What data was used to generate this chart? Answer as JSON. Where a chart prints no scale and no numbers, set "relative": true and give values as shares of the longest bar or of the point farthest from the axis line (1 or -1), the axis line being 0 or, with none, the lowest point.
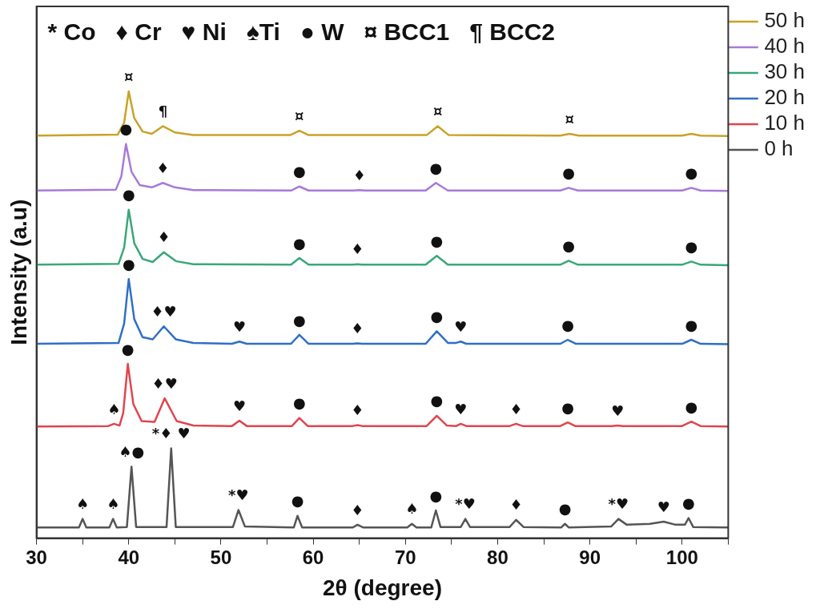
{
  "chart_data": {
    "type": "line",
    "xlabel": "2θ (degree)",
    "ylabel": "Intensity (a.u)",
    "relative": true,
    "tick_labels": "x",
    "legend": "top right",
    "grid": false,
    "marker": "none",
    "line_style": "solid",
    "xlim": [
      30,
      105
    ],
    "xticks": [
      30,
      {
        "value": 35,
        "label": null
      },
      40,
      {
        "value": 45,
        "label": null
      },
      50,
      {
        "value": 55,
        "label": null
      },
      60,
      {
        "value": 65,
        "label": null
      },
      70,
      {
        "value": 75,
        "label": null
      },
      80,
      {
        "value": 85,
        "label": null
      },
      90,
      {
        "value": 95,
        "label": null
      },
      100,
      {
        "value": 105,
        "label": null
      }
    ],
    "series": [
      {
        "name": "50 h",
        "color": "#c9a227",
        "x": [
          30,
          38.8,
          39.5,
          40,
          40.6,
          41.5,
          42.5,
          43.7,
          45,
          47,
          57.5,
          58.5,
          59.5,
          72.3,
          73.5,
          74.7,
          86.8,
          87.8,
          88.8,
          100,
          101,
          102,
          105
        ],
        "values": [
          0.901,
          0.903,
          0.93,
          1.0,
          0.94,
          0.91,
          0.905,
          0.922,
          0.908,
          0.902,
          0.902,
          0.912,
          0.902,
          0.902,
          0.922,
          0.902,
          0.901,
          0.905,
          0.901,
          0.901,
          0.905,
          0.901,
          0.9
        ]
      },
      {
        "name": "40 h",
        "color": "#a87ad8",
        "x": [
          30,
          38.6,
          39.2,
          39.7,
          40.3,
          41.2,
          42.5,
          43.7,
          45,
          47,
          57.6,
          58.5,
          59.5,
          64.4,
          65,
          65.6,
          72.2,
          73.3,
          74.6,
          86.8,
          87.7,
          88.7,
          100,
          101,
          102,
          105
        ],
        "values": [
          0.778,
          0.78,
          0.81,
          0.882,
          0.82,
          0.79,
          0.785,
          0.795,
          0.785,
          0.779,
          0.778,
          0.787,
          0.778,
          0.778,
          0.779,
          0.778,
          0.778,
          0.795,
          0.778,
          0.778,
          0.784,
          0.778,
          0.778,
          0.784,
          0.778,
          0.777
        ]
      },
      {
        "name": "30 h",
        "color": "#3aa77a",
        "x": [
          30,
          38.9,
          39.5,
          40,
          40.6,
          41.5,
          42.6,
          43.8,
          45.1,
          47,
          57.6,
          58.5,
          59.5,
          64.3,
          64.8,
          65.3,
          72.2,
          73.4,
          74.6,
          86.8,
          87.7,
          88.7,
          100,
          101,
          102,
          105
        ],
        "values": [
          0.612,
          0.614,
          0.65,
          0.735,
          0.66,
          0.625,
          0.618,
          0.64,
          0.62,
          0.613,
          0.612,
          0.627,
          0.612,
          0.612,
          0.613,
          0.612,
          0.612,
          0.632,
          0.612,
          0.612,
          0.621,
          0.612,
          0.612,
          0.619,
          0.612,
          0.611
        ]
      },
      {
        "name": "20 h",
        "color": "#2f6fc8",
        "x": [
          30,
          38.9,
          39.5,
          40,
          40.6,
          41.5,
          42.6,
          43.8,
          45.1,
          47,
          51.2,
          52,
          52.8,
          57.6,
          58.5,
          59.5,
          64.3,
          64.8,
          65.3,
          72.2,
          73.4,
          74.6,
          75.5,
          76,
          76.6,
          86.8,
          87.6,
          88.5,
          100,
          101,
          102,
          105
        ],
        "values": [
          0.435,
          0.437,
          0.48,
          0.58,
          0.49,
          0.45,
          0.445,
          0.474,
          0.445,
          0.437,
          0.435,
          0.44,
          0.435,
          0.435,
          0.455,
          0.435,
          0.435,
          0.436,
          0.435,
          0.435,
          0.463,
          0.437,
          0.437,
          0.44,
          0.435,
          0.435,
          0.444,
          0.435,
          0.435,
          0.444,
          0.435,
          0.434
        ]
      },
      {
        "name": "10 h",
        "color": "#e0454f",
        "x": [
          30,
          37.8,
          38.4,
          39,
          39.4,
          39.9,
          40.5,
          41.4,
          42.8,
          43.9,
          45.2,
          47,
          51.2,
          52,
          52.8,
          57.7,
          58.5,
          59.4,
          64.3,
          64.8,
          65.3,
          72.3,
          73.4,
          74.5,
          75.5,
          76,
          76.6,
          81.3,
          82,
          82.7,
          86.8,
          87.6,
          88.4,
          92.4,
          93,
          93.6,
          100,
          101,
          102,
          105
        ],
        "values": [
          0.25,
          0.251,
          0.256,
          0.252,
          0.28,
          0.39,
          0.3,
          0.262,
          0.26,
          0.313,
          0.262,
          0.252,
          0.251,
          0.263,
          0.251,
          0.251,
          0.269,
          0.251,
          0.251,
          0.253,
          0.251,
          0.251,
          0.274,
          0.252,
          0.251,
          0.256,
          0.251,
          0.251,
          0.256,
          0.251,
          0.251,
          0.259,
          0.251,
          0.251,
          0.252,
          0.251,
          0.251,
          0.261,
          0.251,
          0.25
        ]
      },
      {
        "name": "0 h",
        "color": "#555555",
        "x": [
          30,
          34.6,
          35,
          35.4,
          37.9,
          38.3,
          38.7,
          39.8,
          40.3,
          40.8,
          44.1,
          44.6,
          45.1,
          51.3,
          51.9,
          52.6,
          57.9,
          58.3,
          58.8,
          64.3,
          64.8,
          65.4,
          70.2,
          70.7,
          71.2,
          72.8,
          73.3,
          73.8,
          76,
          76.5,
          77,
          81.3,
          82,
          82.8,
          86.9,
          87.3,
          87.7,
          92.3,
          93.1,
          94,
          96.5,
          98,
          99.3,
          100.3,
          100.7,
          101.2,
          105
        ],
        "values": [
          0.024,
          0.024,
          0.043,
          0.024,
          0.024,
          0.043,
          0.024,
          0.025,
          0.16,
          0.025,
          0.025,
          0.201,
          0.025,
          0.025,
          0.063,
          0.026,
          0.024,
          0.05,
          0.024,
          0.024,
          0.03,
          0.024,
          0.024,
          0.032,
          0.024,
          0.024,
          0.062,
          0.025,
          0.025,
          0.043,
          0.025,
          0.025,
          0.041,
          0.025,
          0.024,
          0.032,
          0.024,
          0.026,
          0.043,
          0.03,
          0.032,
          0.037,
          0.03,
          0.03,
          0.045,
          0.025,
          0.024
        ]
      }
    ],
    "annotations": [
      "* Co   ♦ Cr   ♥ Ni   ♠Ti   ● W   ¤ BCC1   ¶ BCC2",
      {
        "text": "¤",
        "x": 40,
        "y": 1.0
      },
      {
        "text": "¶",
        "x": 43.7,
        "y": 0.922
      },
      {
        "text": "¤",
        "x": 58.5,
        "y": 0.912
      },
      {
        "text": "¤",
        "x": 73.5,
        "y": 0.922
      },
      {
        "text": "¤",
        "x": 87.8,
        "y": 0.905
      },
      {
        "text": "●",
        "x": 39.7,
        "y": 0.882
      },
      {
        "text": "♦",
        "x": 43.7,
        "y": 0.795
      },
      {
        "text": "●",
        "x": 58.5,
        "y": 0.787
      },
      {
        "text": "♦",
        "x": 65,
        "y": 0.779
      },
      {
        "text": "●",
        "x": 73.3,
        "y": 0.795
      },
      {
        "text": "●",
        "x": 87.7,
        "y": 0.784
      },
      {
        "text": "●",
        "x": 101,
        "y": 0.784
      },
      {
        "text": "●",
        "x": 40,
        "y": 0.735
      },
      {
        "text": "♦",
        "x": 43.8,
        "y": 0.64
      },
      {
        "text": "●",
        "x": 58.5,
        "y": 0.627
      },
      {
        "text": "♦",
        "x": 64.8,
        "y": 0.613
      },
      {
        "text": "●",
        "x": 73.4,
        "y": 0.632
      },
      {
        "text": "●",
        "x": 87.7,
        "y": 0.621
      },
      {
        "text": "●",
        "x": 101,
        "y": 0.619
      },
      {
        "text": "●",
        "x": 40,
        "y": 0.58
      },
      {
        "text": "♦♥",
        "x": 43.8,
        "y": 0.474
      },
      {
        "text": "♥",
        "x": 52,
        "y": 0.44
      },
      {
        "text": "●",
        "x": 58.5,
        "y": 0.455
      },
      {
        "text": "♦",
        "x": 64.8,
        "y": 0.436
      },
      {
        "text": "●",
        "x": 73.4,
        "y": 0.463
      },
      {
        "text": "♥",
        "x": 76,
        "y": 0.44
      },
      {
        "text": "●",
        "x": 87.6,
        "y": 0.444
      },
      {
        "text": "●",
        "x": 101,
        "y": 0.444
      },
      {
        "text": "●",
        "x": 39.9,
        "y": 0.39
      },
      {
        "text": "♠",
        "x": 38.4,
        "y": 0.256
      },
      {
        "text": "♦♥",
        "x": 43.9,
        "y": 0.313
      },
      {
        "text": "♥",
        "x": 52,
        "y": 0.263
      },
      {
        "text": "●",
        "x": 58.5,
        "y": 0.269
      },
      {
        "text": "♦",
        "x": 64.8,
        "y": 0.253
      },
      {
        "text": "●",
        "x": 73.4,
        "y": 0.274
      },
      {
        "text": "♥",
        "x": 76,
        "y": 0.256
      },
      {
        "text": "♦",
        "x": 82,
        "y": 0.256
      },
      {
        "text": "●",
        "x": 87.6,
        "y": 0.259
      },
      {
        "text": "♥",
        "x": 93,
        "y": 0.252
      },
      {
        "text": "●",
        "x": 101,
        "y": 0.261
      },
      {
        "text": "♠",
        "x": 35,
        "y": 0.043
      },
      {
        "text": "♠",
        "x": 38.3,
        "y": 0.043
      },
      {
        "text": "♠●",
        "x": 40.3,
        "y": 0.16
      },
      {
        "text": "*♦ ♥",
        "x": 44.6,
        "y": 0.201
      },
      {
        "text": "*♥",
        "x": 51.9,
        "y": 0.063
      },
      {
        "text": "●",
        "x": 58.3,
        "y": 0.05
      },
      {
        "text": "♦",
        "x": 64.8,
        "y": 0.03
      },
      {
        "text": "♠",
        "x": 70.7,
        "y": 0.032
      },
      {
        "text": "●",
        "x": 73.3,
        "y": 0.062
      },
      {
        "text": "*♥",
        "x": 76.5,
        "y": 0.043
      },
      {
        "text": "♦",
        "x": 82,
        "y": 0.041
      },
      {
        "text": "●",
        "x": 87.3,
        "y": 0.032
      },
      {
        "text": "*♥",
        "x": 93.1,
        "y": 0.043
      },
      {
        "text": "♥",
        "x": 98,
        "y": 0.037
      },
      {
        "text": "●",
        "x": 100.7,
        "y": 0.045
      }
    ]
  }
}
